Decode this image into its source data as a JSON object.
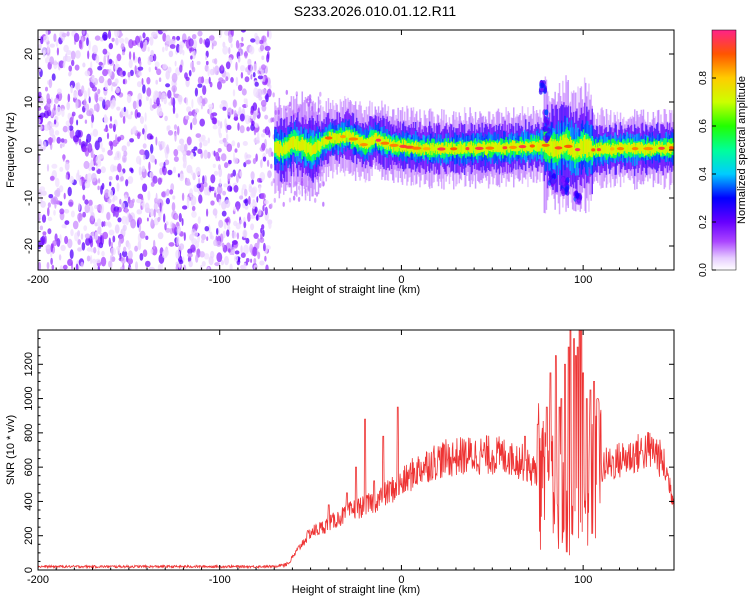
{
  "title": "S233.2026.010.01.12.R11",
  "colors": {
    "snr_line": "#ee3333",
    "axis": "#000000",
    "background": "#ffffff"
  },
  "chart_data": [
    {
      "type": "heatmap",
      "name": "spectrogram",
      "xlabel": "Height of straight line (km)",
      "ylabel": "Frequency (Hz)",
      "xlim": [
        -200,
        150
      ],
      "ylim": [
        -25,
        25
      ],
      "xticks": [
        "-200",
        "-100",
        "0",
        "100"
      ],
      "yticks": [
        "20",
        "10",
        "0",
        "-10",
        "-20"
      ],
      "colorbar": {
        "label": "Normalized spectral amplitude",
        "range": [
          0,
          1
        ],
        "ticks": [
          "0.0",
          "0.2",
          "0.4",
          "0.6",
          "0.8"
        ]
      },
      "ridge": {
        "x": [
          -70,
          -65,
          -60,
          -55,
          -50,
          -45,
          -40,
          -35,
          -30,
          -25,
          -20,
          -15,
          -10,
          -5,
          0,
          10,
          20,
          40,
          60,
          70,
          80,
          85,
          90,
          95,
          100,
          105,
          120,
          140,
          150
        ],
        "y": [
          0.5,
          0,
          1.5,
          1,
          0,
          1,
          2.5,
          2.5,
          3,
          2,
          1,
          2.5,
          1.5,
          1,
          0.8,
          0.3,
          0.2,
          0.3,
          0.5,
          0.8,
          1,
          0,
          1.5,
          -0.5,
          1,
          0,
          0.3,
          0.3,
          0.5
        ]
      },
      "noise_region_x": [
        -200,
        -72
      ],
      "gap_region_x": [
        -72,
        150
      ]
    },
    {
      "type": "line",
      "name": "snr",
      "xlabel": "Height of straight line (km)",
      "ylabel": "SNR (10 * v/v)",
      "xlim": [
        -200,
        150
      ],
      "ylim": [
        0,
        1400
      ],
      "xticks": [
        "-200",
        "-100",
        "0",
        "100"
      ],
      "yticks": [
        "0",
        "200",
        "400",
        "600",
        "800",
        "1000",
        "1200"
      ],
      "series": [
        {
          "x": [
            -200,
            -150,
            -100,
            -70,
            -62,
            -55,
            -50,
            -45,
            -40,
            -35,
            -30,
            -25,
            -20,
            -15,
            -10,
            -5,
            0,
            5,
            10,
            15,
            20,
            25,
            30,
            40,
            50,
            60,
            65,
            70,
            75,
            78,
            80,
            85,
            90,
            95,
            98,
            100,
            105,
            110,
            115,
            120,
            125,
            130,
            135,
            140,
            145,
            150
          ],
          "values": [
            20,
            20,
            20,
            20,
            40,
            150,
            220,
            240,
            270,
            300,
            330,
            360,
            370,
            400,
            430,
            470,
            500,
            550,
            590,
            620,
            640,
            650,
            660,
            670,
            670,
            660,
            640,
            600,
            560,
            500,
            480,
            420,
            350,
            300,
            280,
            300,
            550,
            600,
            620,
            640,
            660,
            680,
            700,
            690,
            600,
            400
          ]
        }
      ],
      "spikes": {
        "x": [
          -40,
          -30,
          -25,
          -20,
          -15,
          -10,
          -2,
          60,
          68,
          75,
          80,
          82,
          85,
          87,
          88,
          90,
          92,
          93,
          95,
          96,
          97,
          98,
          99,
          100,
          102,
          104,
          106,
          108
        ],
        "values": [
          380,
          450,
          600,
          880,
          520,
          780,
          950,
          720,
          780,
          850,
          950,
          1150,
          1250,
          950,
          1000,
          1200,
          1300,
          1400,
          1350,
          1250,
          1300,
          1400,
          1400,
          1150,
          1000,
          1050,
          1100,
          1000
        ]
      }
    }
  ]
}
